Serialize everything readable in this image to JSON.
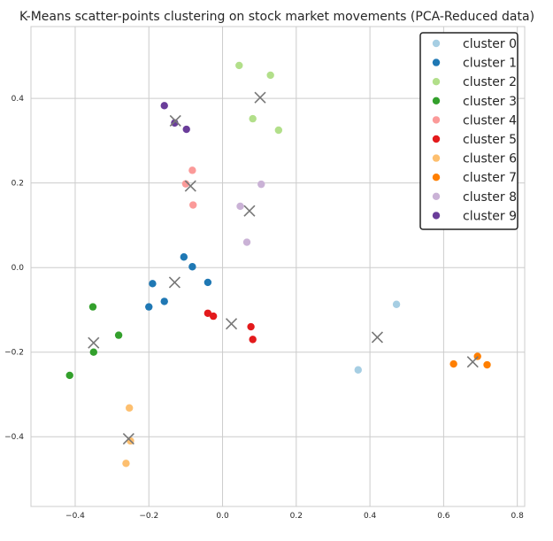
{
  "chart_data": {
    "type": "scatter",
    "title": "K-Means scatter-points clustering on stock market movements (PCA-Reduced data)",
    "xlabel": "",
    "ylabel": "",
    "xlim": [
      -0.52,
      0.82
    ],
    "ylim": [
      -0.565,
      0.57
    ],
    "x_ticks": [
      -0.4,
      -0.2,
      0.0,
      0.2,
      0.4,
      0.6,
      0.8
    ],
    "x_tick_labels": [
      "−0.4",
      "−0.2",
      "0.0",
      "0.2",
      "0.4",
      "0.6",
      "0.8"
    ],
    "y_ticks": [
      -0.4,
      -0.2,
      0.0,
      0.2,
      0.4
    ],
    "y_tick_labels": [
      "−0.4",
      "−0.2",
      "0.0",
      "0.2",
      "0.4"
    ],
    "grid": true,
    "legend_position": "top-right",
    "series": [
      {
        "name": "cluster 0",
        "color": "#a6cee3",
        "points": [
          [
            0.472,
            -0.087
          ],
          [
            0.368,
            -0.242
          ]
        ]
      },
      {
        "name": "cluster 1",
        "color": "#1f78b4",
        "points": [
          [
            -0.105,
            0.025
          ],
          [
            -0.082,
            0.002
          ],
          [
            -0.04,
            -0.035
          ],
          [
            -0.19,
            -0.038
          ],
          [
            -0.2,
            -0.093
          ],
          [
            -0.158,
            -0.08
          ]
        ]
      },
      {
        "name": "cluster 2",
        "color": "#b2df8a",
        "points": [
          [
            0.045,
            0.478
          ],
          [
            0.13,
            0.455
          ],
          [
            0.082,
            0.352
          ],
          [
            0.152,
            0.325
          ]
        ]
      },
      {
        "name": "cluster 3",
        "color": "#33a02c",
        "points": [
          [
            -0.352,
            -0.093
          ],
          [
            -0.282,
            -0.16
          ],
          [
            -0.35,
            -0.2
          ],
          [
            -0.415,
            -0.255
          ]
        ]
      },
      {
        "name": "cluster 4",
        "color": "#fb9a99",
        "points": [
          [
            -0.082,
            0.23
          ],
          [
            -0.1,
            0.198
          ],
          [
            -0.08,
            0.148
          ]
        ]
      },
      {
        "name": "cluster 5",
        "color": "#e31a1c",
        "points": [
          [
            -0.04,
            -0.108
          ],
          [
            -0.025,
            -0.115
          ],
          [
            0.077,
            -0.14
          ],
          [
            0.082,
            -0.17
          ]
        ]
      },
      {
        "name": "cluster 6",
        "color": "#fdbf6f",
        "points": [
          [
            -0.253,
            -0.332
          ],
          [
            -0.25,
            -0.41
          ],
          [
            -0.262,
            -0.463
          ]
        ]
      },
      {
        "name": "cluster 7",
        "color": "#ff7f00",
        "points": [
          [
            0.627,
            -0.228
          ],
          [
            0.692,
            -0.21
          ],
          [
            0.718,
            -0.23
          ]
        ]
      },
      {
        "name": "cluster 8",
        "color": "#cab2d6",
        "points": [
          [
            0.105,
            0.197
          ],
          [
            0.048,
            0.145
          ],
          [
            0.066,
            0.06
          ]
        ]
      },
      {
        "name": "cluster 9",
        "color": "#6a3d9a",
        "points": [
          [
            -0.158,
            0.383
          ],
          [
            -0.13,
            0.342
          ],
          [
            -0.098,
            0.327
          ]
        ]
      }
    ],
    "centroids": {
      "marker": "x",
      "color": "#777777",
      "points": [
        [
          0.42,
          -0.165
        ],
        [
          -0.13,
          -0.035
        ],
        [
          0.102,
          0.402
        ],
        [
          -0.35,
          -0.178
        ],
        [
          -0.087,
          0.193
        ],
        [
          0.024,
          -0.133
        ],
        [
          -0.255,
          -0.405
        ],
        [
          0.679,
          -0.223
        ],
        [
          0.073,
          0.134
        ],
        [
          -0.128,
          0.347
        ]
      ]
    }
  }
}
